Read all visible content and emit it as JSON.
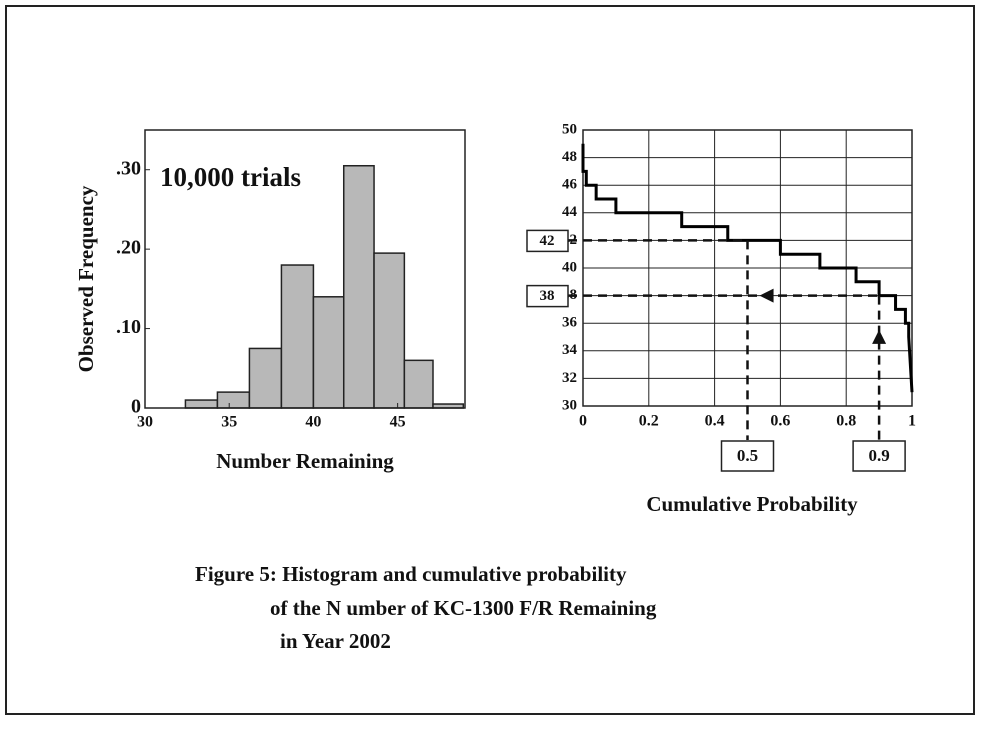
{
  "chart_data": [
    {
      "type": "histogram",
      "annotation": "10,000 trials",
      "ylabel": "Observed Frequency",
      "xlabel": "Number Remaining",
      "bins": [
        32.4,
        34.3,
        36.2,
        38.1,
        40.0,
        41.8,
        43.6,
        45.4,
        47.1,
        48.9
      ],
      "values": [
        0.01,
        0.02,
        0.075,
        0.18,
        0.14,
        0.305,
        0.195,
        0.06,
        0.005
      ],
      "color": "#b8b8b8",
      "xlim": [
        30,
        49
      ],
      "xticks": [
        30,
        35,
        40,
        45
      ],
      "ylim": [
        0,
        0.35
      ],
      "yticks": [
        0,
        {
          "value": 0.1,
          "label": ".10"
        },
        {
          "value": 0.2,
          "label": ".20"
        },
        {
          "value": 0.3,
          "label": ".30"
        }
      ]
    },
    {
      "type": "line",
      "xlabel": "Cumulative Probability",
      "x": [
        0,
        0,
        0.01,
        0.01,
        0.04,
        0.04,
        0.1,
        0.1,
        0.17,
        0.17,
        0.3,
        0.3,
        0.44,
        0.44,
        0.6,
        0.6,
        0.72,
        0.72,
        0.83,
        0.83,
        0.9,
        0.9,
        0.95,
        0.95,
        0.98,
        0.98,
        0.99,
        0.99,
        1
      ],
      "values": [
        49,
        47,
        47,
        46,
        46,
        45,
        45,
        44,
        44,
        44,
        44,
        43,
        43,
        42,
        42,
        41,
        41,
        40,
        40,
        39,
        39,
        38,
        38,
        37,
        37,
        36,
        36,
        35,
        31
      ],
      "color": "#000000",
      "xlim": [
        0,
        1
      ],
      "xticks": [
        0,
        0.2,
        0.4,
        0.6,
        0.8,
        1
      ],
      "ylim": [
        30,
        50
      ],
      "yticks": [
        30,
        32,
        34,
        36,
        38,
        40,
        42,
        44,
        46,
        48,
        50
      ],
      "grid": true,
      "annotations": [
        {
          "x": 0.5,
          "y": 42
        },
        {
          "x": 0.9,
          "y": 38
        }
      ]
    }
  ],
  "caption": [
    "Figure 5: Histogram and cumulative probability",
    "of the N umber of KC-1300 F/R Remaining",
    "in Year 2002"
  ]
}
